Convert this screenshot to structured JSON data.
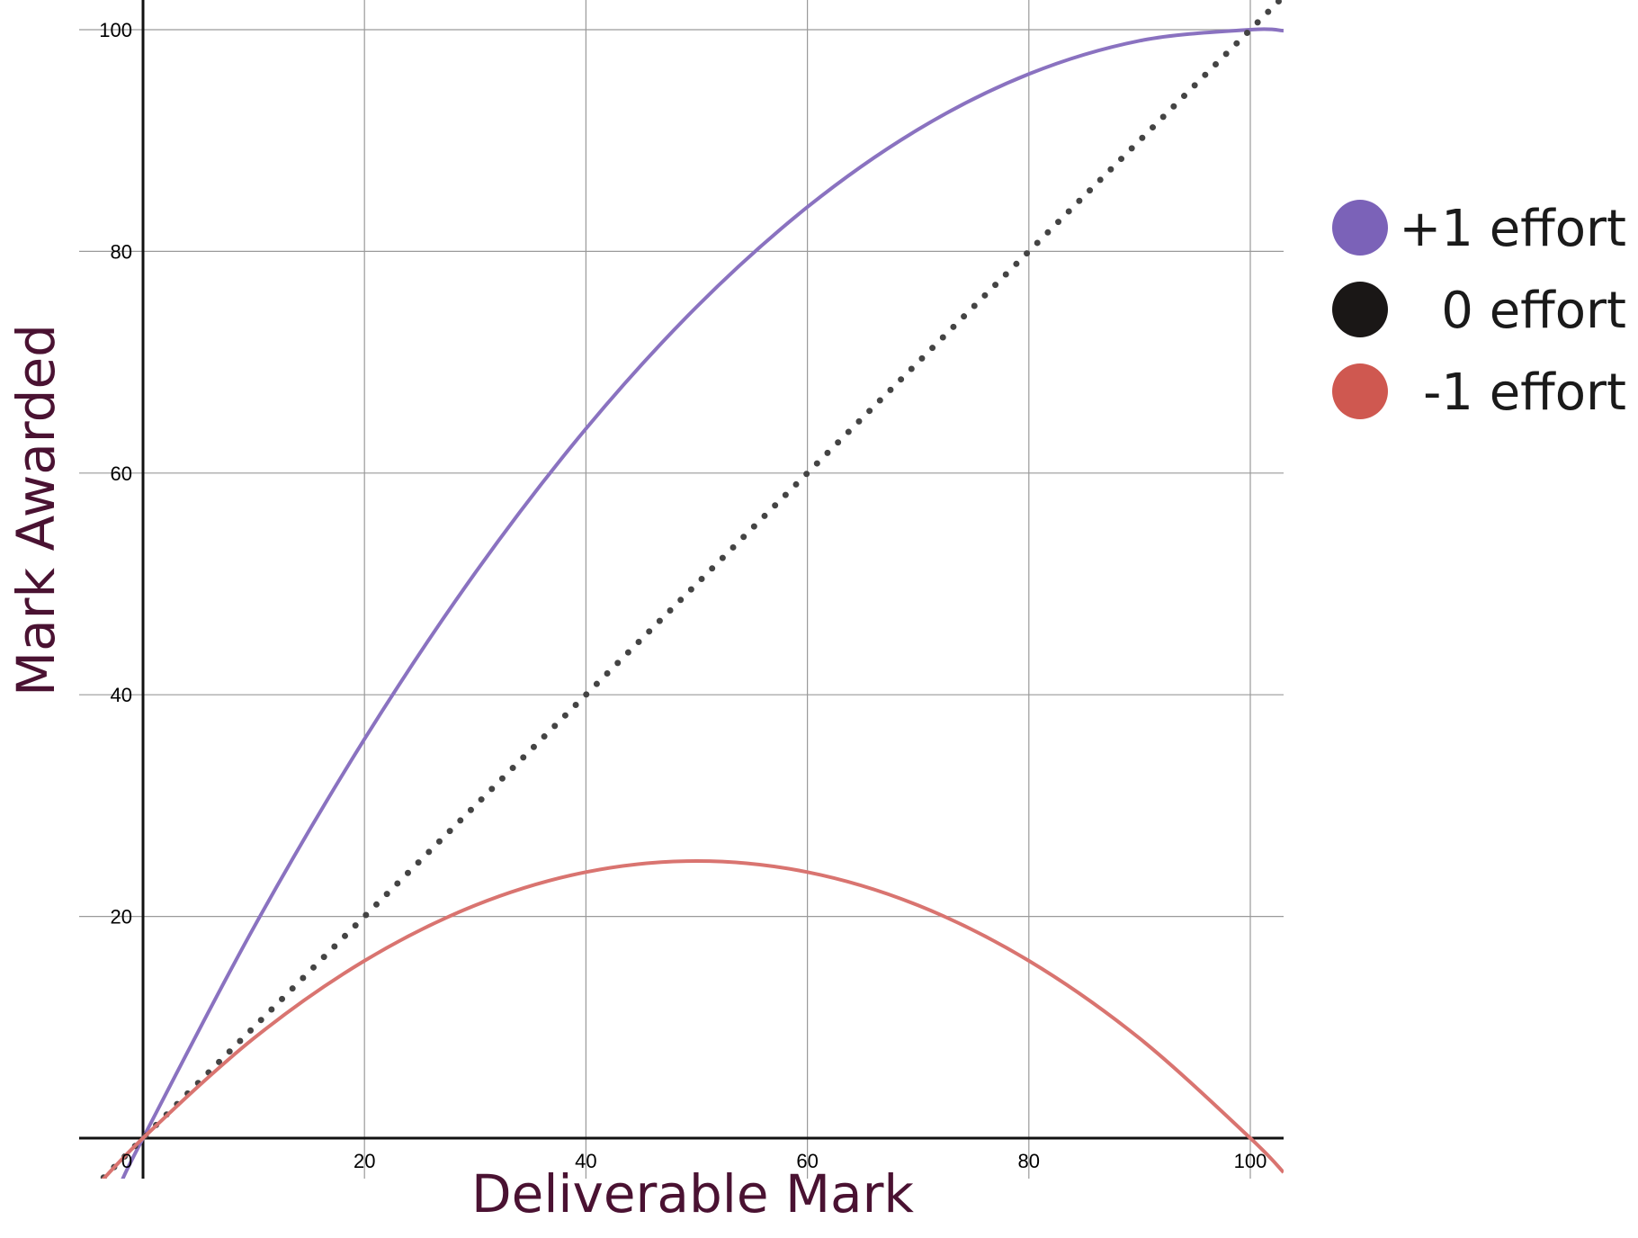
{
  "chart_data": {
    "type": "line",
    "xlabel": "Deliverable Mark",
    "ylabel": "Mark Awarded",
    "xlim": [
      -10,
      103
    ],
    "ylim": [
      -7,
      102
    ],
    "x_ticks": [
      0,
      20,
      40,
      60,
      80,
      100
    ],
    "x_tick_labels": [
      "0",
      "20",
      "40",
      "60",
      "80",
      "100"
    ],
    "y_ticks": [
      20,
      40,
      60,
      80,
      100
    ],
    "y_tick_labels": [
      "20",
      "40",
      "60",
      "80",
      "100"
    ],
    "grid": true,
    "legend_position": "right",
    "series": [
      {
        "name": "+1 effort",
        "color": "#8a72c0",
        "legend_color": "#7b62b8",
        "style": "solid",
        "x": [
          -2,
          0,
          10,
          20,
          30,
          40,
          50,
          60,
          70,
          80,
          90,
          100,
          103
        ],
        "y": [
          -4.04,
          0,
          19,
          36,
          51,
          64,
          75,
          84,
          91,
          96,
          99,
          100,
          99.91
        ]
      },
      {
        "name": "0 effort",
        "color": "#444444",
        "legend_color": "#1a1716",
        "style": "dotted",
        "x": [
          -4.5,
          0,
          20,
          40,
          60,
          80,
          100,
          103
        ],
        "y": [
          -4.5,
          0,
          20,
          40,
          60,
          80,
          100,
          103
        ]
      },
      {
        "name": "-1 effort",
        "color": "#d97470",
        "legend_color": "#cf5850",
        "style": "solid",
        "x": [
          -5,
          0,
          10,
          20,
          30,
          40,
          50,
          60,
          70,
          80,
          90,
          100,
          103
        ],
        "y": [
          -5.25,
          0,
          9,
          16,
          21,
          24,
          25,
          24,
          21,
          16,
          9,
          0,
          -3.09
        ]
      }
    ]
  }
}
